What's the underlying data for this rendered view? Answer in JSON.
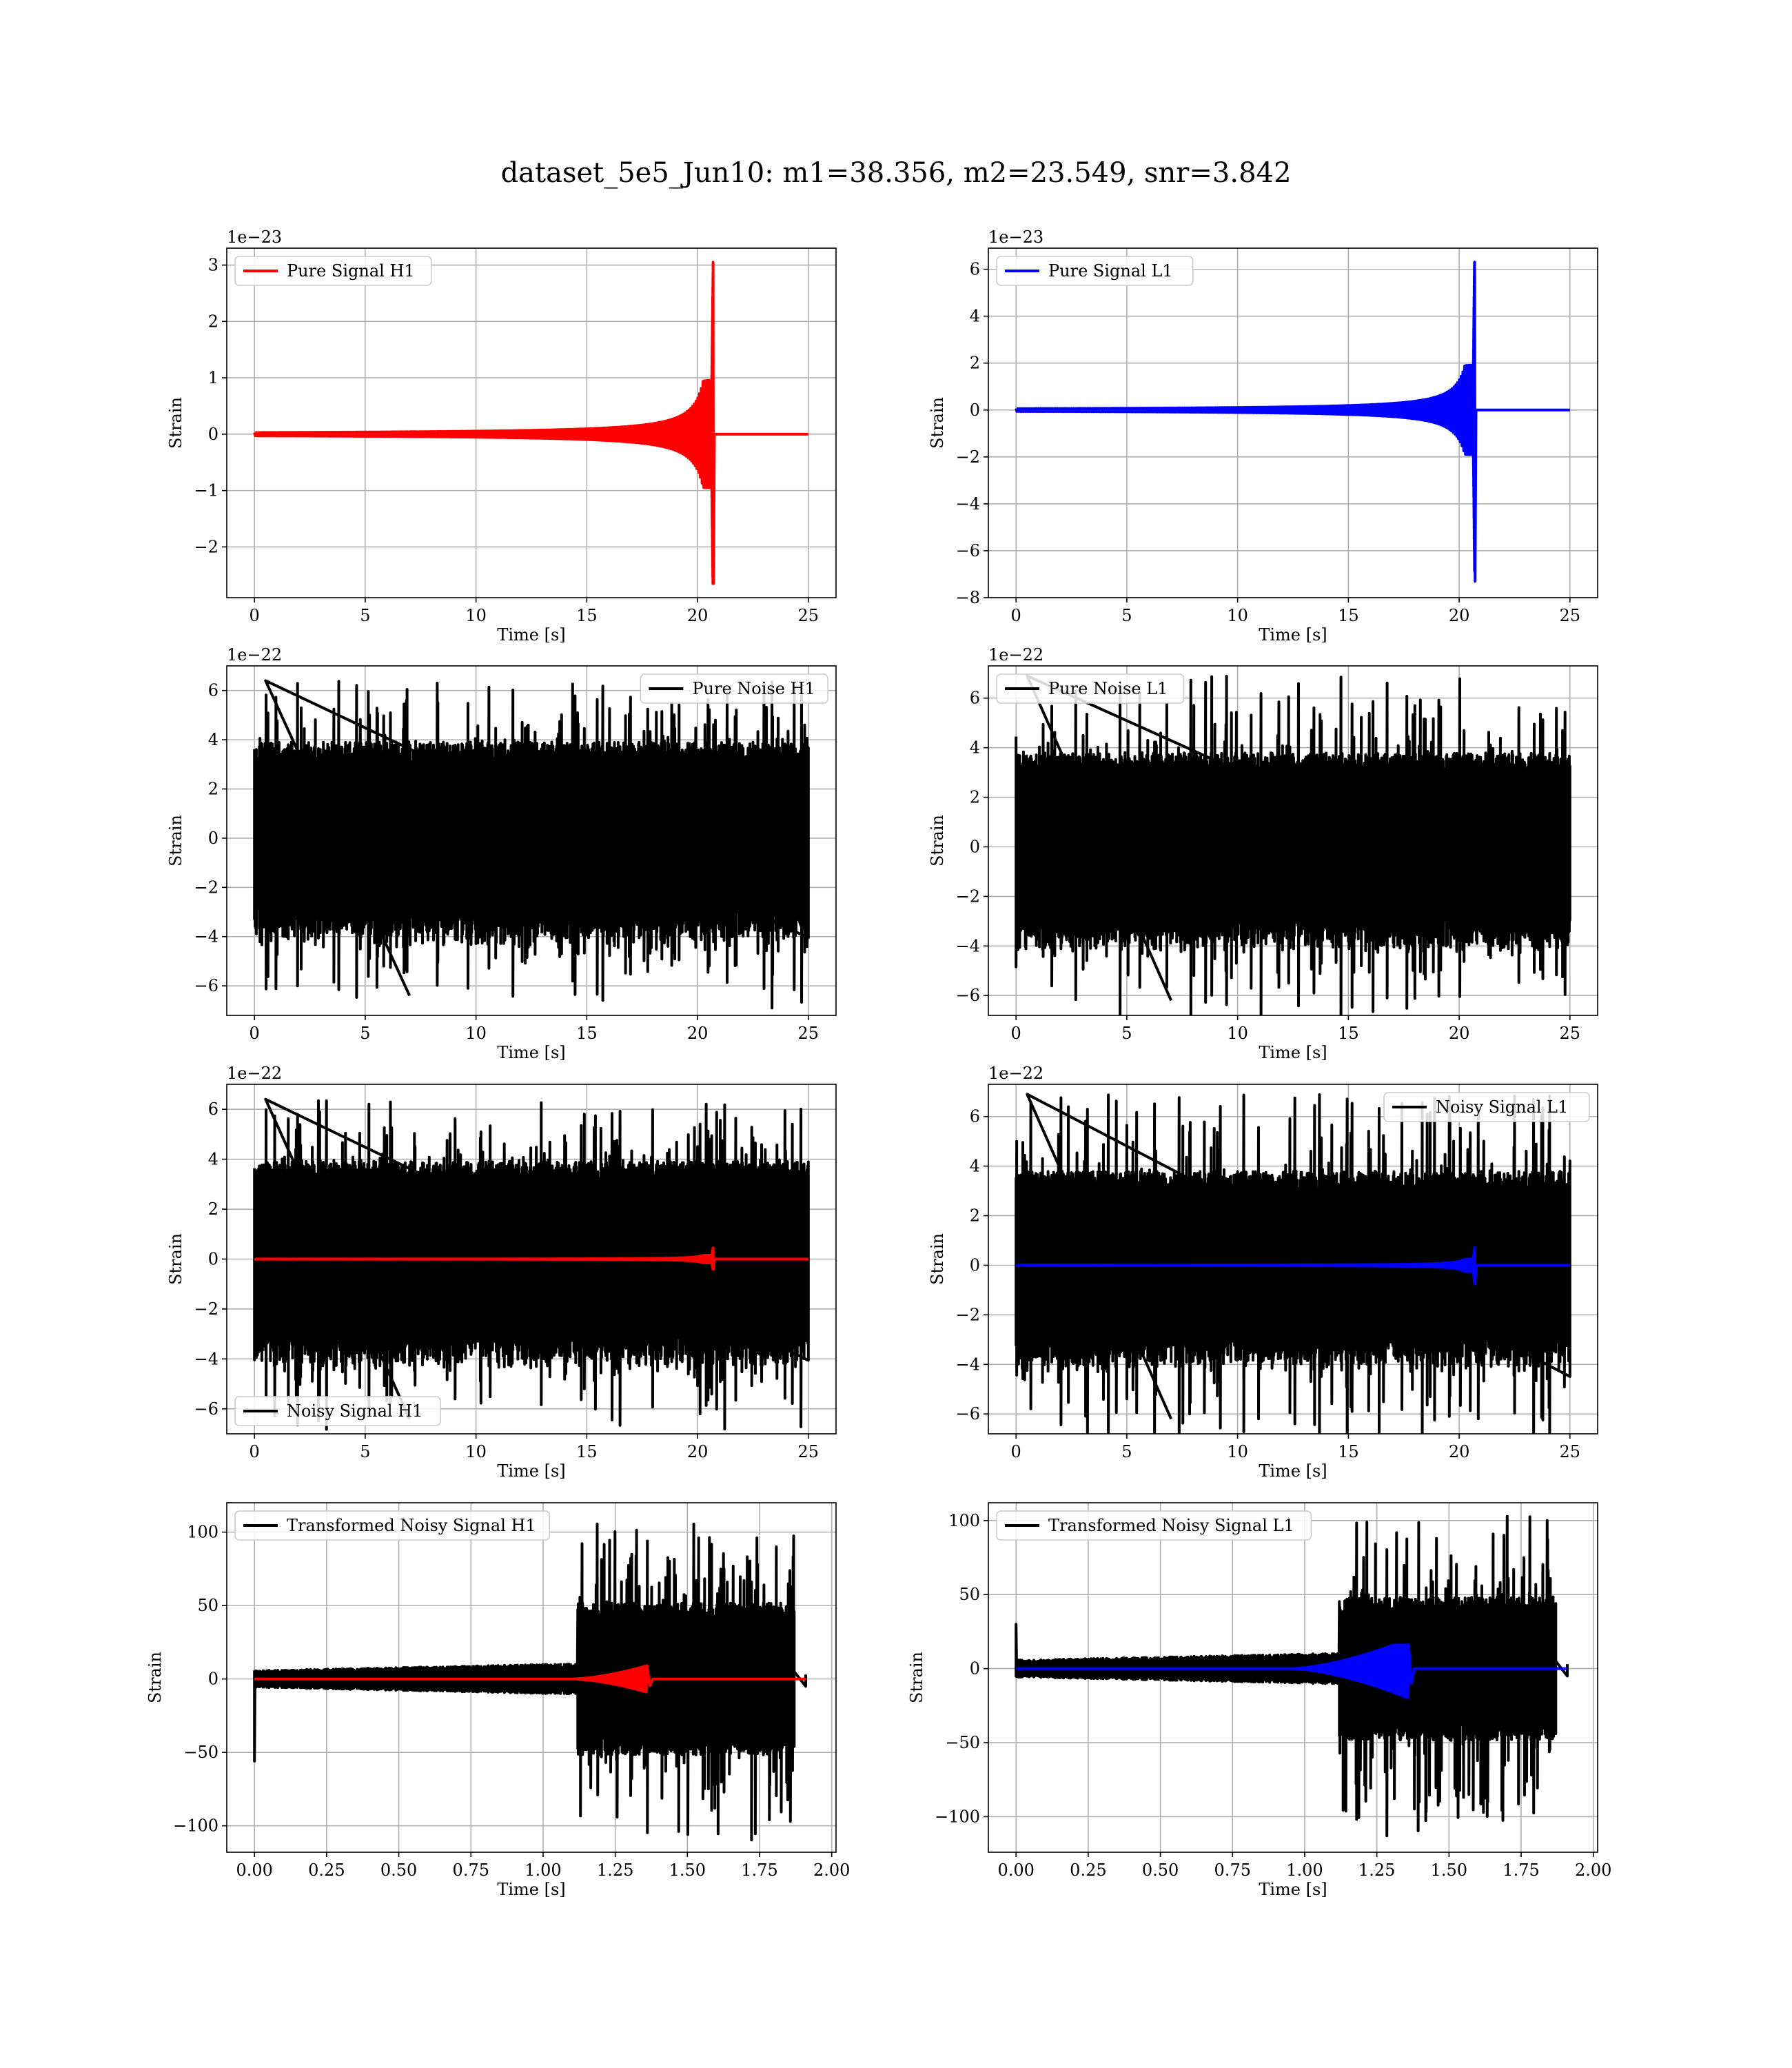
{
  "title": "dataset_5e5_Jun10: m1=38.356, m2=23.549, snr=3.842",
  "chart_data": [
    {
      "id": "pure_signal_h1",
      "type": "line",
      "xlabel": "Time [s]",
      "ylabel": "Strain",
      "offset_text": "1e−23",
      "xlim": [
        -1.25,
        26.25
      ],
      "ylim": [
        -2.9,
        3.3
      ],
      "xticks": [
        0,
        5,
        10,
        15,
        20,
        25
      ],
      "xtick_labels": [
        "0",
        "5",
        "10",
        "15",
        "20",
        "25"
      ],
      "yticks": [
        -2,
        -1,
        0,
        1,
        2,
        3
      ],
      "ytick_labels": [
        "−2",
        "−1",
        "0",
        "1",
        "2",
        "3"
      ],
      "grid": true,
      "legend_position": "upper left",
      "series": [
        {
          "name": "Pure Signal H1",
          "color": "#ff0000",
          "kind": "chirp",
          "t_start": 0,
          "t_end": 25,
          "t_merge": 20.7,
          "amp_peak": 3.05,
          "amp_trough": -2.65,
          "amp_plateau": 0.95
        }
      ]
    },
    {
      "id": "pure_signal_l1",
      "type": "line",
      "xlabel": "Time [s]",
      "ylabel": "Strain",
      "offset_text": "1e−23",
      "xlim": [
        -1.25,
        26.25
      ],
      "ylim": [
        -8,
        6.9
      ],
      "xticks": [
        0,
        5,
        10,
        15,
        20,
        25
      ],
      "xtick_labels": [
        "0",
        "5",
        "10",
        "15",
        "20",
        "25"
      ],
      "yticks": [
        -8,
        -6,
        -4,
        -2,
        0,
        2,
        4,
        6
      ],
      "ytick_labels": [
        "−8",
        "−6",
        "−4",
        "−2",
        "0",
        "2",
        "4",
        "6"
      ],
      "grid": true,
      "legend_position": "upper left",
      "series": [
        {
          "name": "Pure Signal L1",
          "color": "#0000ff",
          "kind": "chirp",
          "t_start": 0,
          "t_end": 25,
          "t_merge": 20.7,
          "amp_peak": 6.3,
          "amp_trough": -7.3,
          "amp_plateau": 1.9
        }
      ]
    },
    {
      "id": "pure_noise_h1",
      "type": "line",
      "xlabel": "Time [s]",
      "ylabel": "Strain",
      "offset_text": "1e−22",
      "xlim": [
        -1.25,
        26.25
      ],
      "ylim": [
        -7.2,
        7.0
      ],
      "xticks": [
        0,
        5,
        10,
        15,
        20,
        25
      ],
      "xtick_labels": [
        "0",
        "5",
        "10",
        "15",
        "20",
        "25"
      ],
      "yticks": [
        -6,
        -4,
        -2,
        0,
        2,
        4,
        6
      ],
      "ytick_labels": [
        "−6",
        "−4",
        "−2",
        "0",
        "2",
        "4",
        "6"
      ],
      "grid": true,
      "legend_position": "upper right",
      "series": [
        {
          "name": "Pure Noise H1",
          "color": "#000000",
          "kind": "noise",
          "t_start": 0,
          "t_end": 25,
          "core": 3.4,
          "max": 6.4,
          "min": -6.4
        }
      ]
    },
    {
      "id": "pure_noise_l1",
      "type": "line",
      "xlabel": "Time [s]",
      "ylabel": "Strain",
      "offset_text": "1e−22",
      "xlim": [
        -1.25,
        26.25
      ],
      "ylim": [
        -6.8,
        7.3
      ],
      "xticks": [
        0,
        5,
        10,
        15,
        20,
        25
      ],
      "xtick_labels": [
        "0",
        "5",
        "10",
        "15",
        "20",
        "25"
      ],
      "yticks": [
        -6,
        -4,
        -2,
        0,
        2,
        4,
        6
      ],
      "ytick_labels": [
        "−6",
        "−4",
        "−2",
        "0",
        "2",
        "4",
        "6"
      ],
      "grid": true,
      "legend_position": "upper left",
      "series": [
        {
          "name": "Pure Noise L1",
          "color": "#000000",
          "kind": "noise",
          "t_start": 0,
          "t_end": 25,
          "core": 3.3,
          "max": 6.9,
          "min": -6.2
        }
      ]
    },
    {
      "id": "noisy_signal_h1",
      "type": "line",
      "xlabel": "Time [s]",
      "ylabel": "Strain",
      "offset_text": "1e−22",
      "xlim": [
        -1.25,
        26.25
      ],
      "ylim": [
        -7.0,
        7.0
      ],
      "xticks": [
        0,
        5,
        10,
        15,
        20,
        25
      ],
      "xtick_labels": [
        "0",
        "5",
        "10",
        "15",
        "20",
        "25"
      ],
      "yticks": [
        -6,
        -4,
        -2,
        0,
        2,
        4,
        6
      ],
      "ytick_labels": [
        "−6",
        "−4",
        "−2",
        "0",
        "2",
        "4",
        "6"
      ],
      "grid": true,
      "legend_position": "lower left",
      "series": [
        {
          "name": "Noisy Signal H1",
          "color": "#000000",
          "kind": "noise",
          "t_start": 0,
          "t_end": 25,
          "core": 3.4,
          "max": 6.4,
          "min": -6.4
        },
        {
          "color": "#ff0000",
          "kind": "chirp",
          "t_start": 0,
          "t_end": 25,
          "t_merge": 20.7,
          "amp_peak": 0.45,
          "amp_trough": -0.4,
          "amp_plateau": 0.15
        }
      ]
    },
    {
      "id": "noisy_signal_l1",
      "type": "line",
      "xlabel": "Time [s]",
      "ylabel": "Strain",
      "offset_text": "1e−22",
      "xlim": [
        -1.25,
        26.25
      ],
      "ylim": [
        -6.8,
        7.3
      ],
      "xticks": [
        0,
        5,
        10,
        15,
        20,
        25
      ],
      "xtick_labels": [
        "0",
        "5",
        "10",
        "15",
        "20",
        "25"
      ],
      "yticks": [
        -6,
        -4,
        -2,
        0,
        2,
        4,
        6
      ],
      "ytick_labels": [
        "−6",
        "−4",
        "−2",
        "0",
        "2",
        "4",
        "6"
      ],
      "grid": true,
      "legend_position": "upper right",
      "series": [
        {
          "name": "Noisy Signal L1",
          "color": "#000000",
          "kind": "noise",
          "t_start": 0,
          "t_end": 25,
          "core": 3.3,
          "max": 6.9,
          "min": -6.2
        },
        {
          "color": "#0000ff",
          "kind": "chirp",
          "t_start": 0,
          "t_end": 25,
          "t_merge": 20.7,
          "amp_peak": 0.7,
          "amp_trough": -0.75,
          "amp_plateau": 0.25
        }
      ]
    },
    {
      "id": "transformed_noisy_signal_h1",
      "type": "line",
      "xlabel": "Time [s]",
      "ylabel": "Strain",
      "offset_text": "",
      "xlim": [
        -0.096,
        2.015
      ],
      "ylim": [
        -118,
        120
      ],
      "xticks": [
        0,
        0.25,
        0.5,
        0.75,
        1.0,
        1.25,
        1.5,
        1.75,
        2.0
      ],
      "xtick_labels": [
        "0.00",
        "0.25",
        "0.50",
        "0.75",
        "1.00",
        "1.25",
        "1.50",
        "1.75",
        "2.00"
      ],
      "yticks": [
        -100,
        -50,
        0,
        50,
        100
      ],
      "ytick_labels": [
        "−100",
        "−50",
        "0",
        "50",
        "100"
      ],
      "grid": true,
      "legend_position": "upper left",
      "series": [
        {
          "name": "Transformed Noisy Signal H1",
          "color": "#000000",
          "kind": "tnoise",
          "t_start": 0,
          "t_end": 1.91,
          "t_jump": 1.12,
          "t_stop": 1.87,
          "core_pre": 9,
          "core_post": 45,
          "max": 108,
          "min": -110,
          "spike_start": -56
        },
        {
          "color": "#ff0000",
          "kind": "tchirp",
          "t_start": 0,
          "t_end": 1.91,
          "t_on": 1.1,
          "t_merge": 1.36,
          "amp_peak": 9,
          "amp_trough": -9
        }
      ]
    },
    {
      "id": "transformed_noisy_signal_l1",
      "type": "line",
      "xlabel": "Time [s]",
      "ylabel": "Strain",
      "offset_text": "",
      "xlim": [
        -0.096,
        2.015
      ],
      "ylim": [
        -124,
        112
      ],
      "xticks": [
        0,
        0.25,
        0.5,
        0.75,
        1.0,
        1.25,
        1.5,
        1.75,
        2.0
      ],
      "xtick_labels": [
        "0.00",
        "0.25",
        "0.50",
        "0.75",
        "1.00",
        "1.25",
        "1.50",
        "1.75",
        "2.00"
      ],
      "yticks": [
        -100,
        -50,
        0,
        50,
        100
      ],
      "ytick_labels": [
        "−100",
        "−50",
        "0",
        "50",
        "100"
      ],
      "grid": true,
      "legend_position": "upper left",
      "series": [
        {
          "name": "Transformed Noisy Signal L1",
          "color": "#000000",
          "kind": "tnoise",
          "t_start": 0,
          "t_end": 1.91,
          "t_jump": 1.12,
          "t_stop": 1.87,
          "core_pre": 9,
          "core_post": 42,
          "max": 103,
          "min": -113,
          "spike_start": 30
        },
        {
          "color": "#0000ff",
          "kind": "tchirp",
          "t_start": 0,
          "t_end": 1.91,
          "t_on": 0.95,
          "t_merge": 1.36,
          "amp_peak": 16,
          "amp_trough": -20
        }
      ]
    }
  ]
}
